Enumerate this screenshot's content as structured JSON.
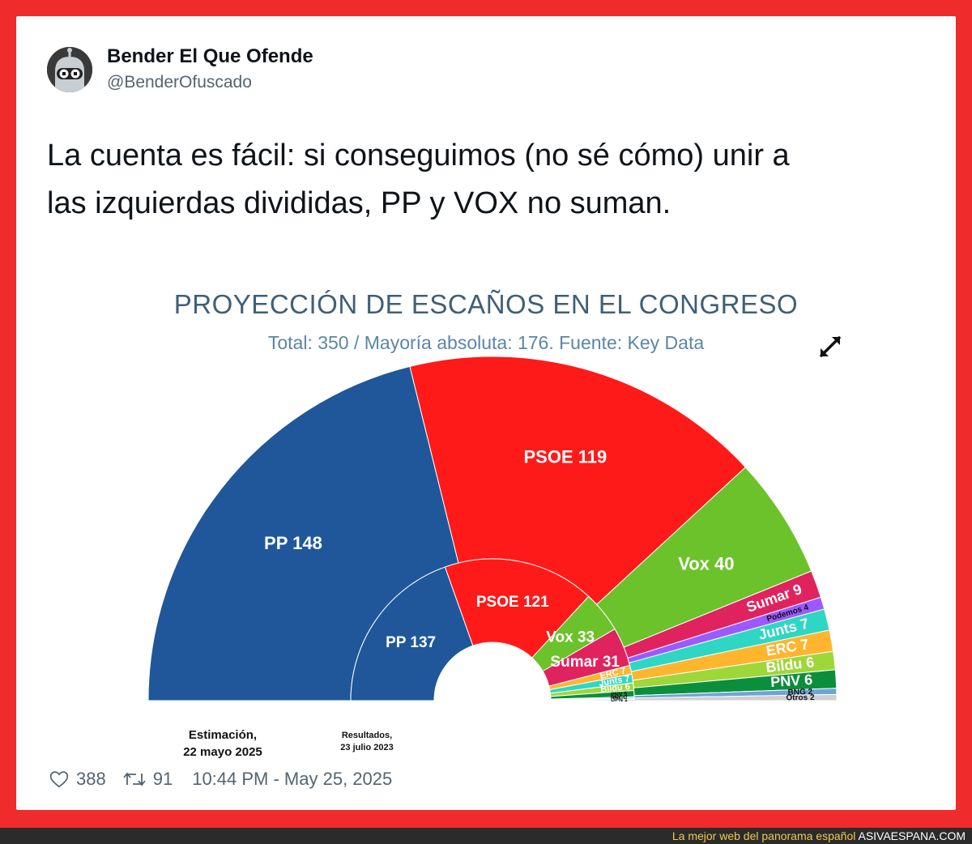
{
  "tweet": {
    "user_name": "Bender El Que Ofende",
    "user_handle": "@BenderOfuscado",
    "text_line1": "La cuenta es fácil: si conseguimos (no sé cómo) unir a",
    "text_line2": "las izquierdas divididas, PP y VOX no suman.",
    "likes": "388",
    "retweets": "91",
    "timestamp": "10:44 PM - May 25, 2025"
  },
  "watermark": {
    "text": "La mejor web del panorama español",
    "site": "ASIVAESPANA.COM"
  },
  "icons": {
    "avatar": "bender-avatar-icon",
    "expand": "expand-arrows-icon",
    "like": "heart-icon",
    "retweet": "retweet-icon"
  },
  "colors": {
    "frame": "#ef2b2b",
    "PP": "#1f579a",
    "PSOE": "#ff1a1a",
    "Vox": "#6cc22a",
    "Sumar": "#e0235f",
    "Podemos": "#9b59ff",
    "Junts": "#2fd6c4",
    "ERC": "#ffb52e",
    "Bildu": "#9fd63a",
    "PNV": "#0c8f3c",
    "BNG": "#6fa3d6",
    "CC": "#bcd4e8",
    "UPN": "#7fb0d9",
    "Otros": "#cfcfcf"
  },
  "chart_data": {
    "type": "pie",
    "subtype": "parliament-semicircle",
    "title": "PROYECCIÓN DE ESCAÑOS EN EL CONGRESO",
    "subtitle": "Total: 350 / Mayoría absoluta: 176. Fuente: Key Data",
    "rings": [
      {
        "name": "Estimación,",
        "name2": "22 mayo 2025",
        "series": [
          {
            "party": "PP",
            "seats": 148,
            "label": "PP 148"
          },
          {
            "party": "PSOE",
            "seats": 119,
            "label": "PSOE 119"
          },
          {
            "party": "Vox",
            "seats": 40,
            "label": "Vox 40"
          },
          {
            "party": "Sumar",
            "seats": 9,
            "label": "Sumar 9"
          },
          {
            "party": "Podemos",
            "seats": 4,
            "label": "Podemos 4"
          },
          {
            "party": "Junts",
            "seats": 7,
            "label": "Junts 7"
          },
          {
            "party": "ERC",
            "seats": 7,
            "label": "ERC 7"
          },
          {
            "party": "Bildu",
            "seats": 6,
            "label": "Bildu 6"
          },
          {
            "party": "PNV",
            "seats": 6,
            "label": "PNV 6"
          },
          {
            "party": "BNG",
            "seats": 2,
            "label": "BNG 2"
          },
          {
            "party": "Otros",
            "seats": 2,
            "label": "Otros 2"
          }
        ]
      },
      {
        "name": "Resultados,",
        "name2": "23 julio 2023",
        "series": [
          {
            "party": "PP",
            "seats": 137,
            "label": "PP 137"
          },
          {
            "party": "PSOE",
            "seats": 121,
            "label": "PSOE 121"
          },
          {
            "party": "Vox",
            "seats": 33,
            "label": "Vox 33"
          },
          {
            "party": "Sumar",
            "seats": 31,
            "label": "Sumar 31"
          },
          {
            "party": "ERC",
            "seats": 7,
            "label": "ERC 7"
          },
          {
            "party": "Junts",
            "seats": 7,
            "label": "Junts 7"
          },
          {
            "party": "Bildu",
            "seats": 6,
            "label": "Bildu 6"
          },
          {
            "party": "PNV",
            "seats": 5,
            "label": "PNV 5"
          },
          {
            "party": "BNG",
            "seats": 1,
            "label": "BNG 1"
          },
          {
            "party": "CC",
            "seats": 1,
            "label": "CC 1"
          },
          {
            "party": "UPN",
            "seats": 1,
            "label": "UPN 1"
          }
        ]
      }
    ]
  }
}
